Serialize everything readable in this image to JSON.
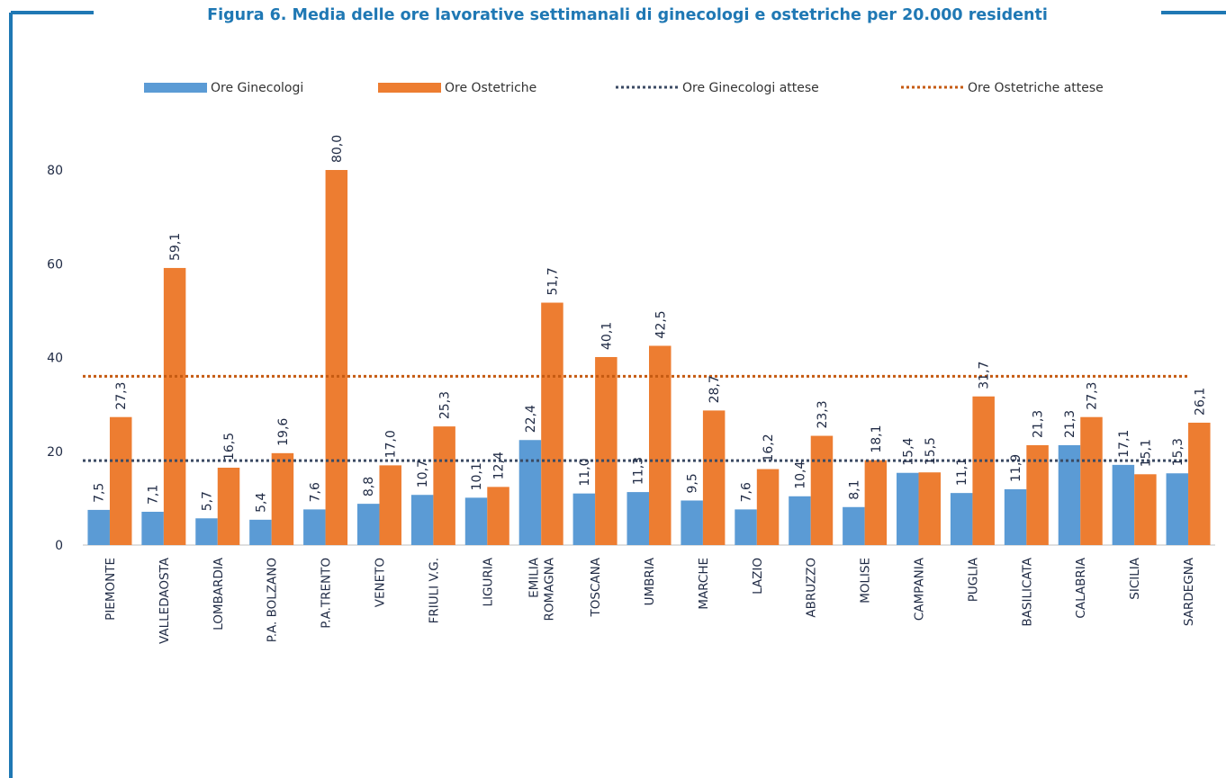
{
  "chart_data": {
    "type": "bar",
    "title": "Figura 6. Media delle ore lavorative settimanali di ginecologi e ostetriche per 20.000 residenti",
    "categories": [
      [
        "PIEMONTE"
      ],
      [
        "VALLEDAOSTA"
      ],
      [
        "LOMBARDIA"
      ],
      [
        "P.A. BOLZANO"
      ],
      [
        "P.A.TRENTO"
      ],
      [
        "VENETO"
      ],
      [
        "FRIULI V.G."
      ],
      [
        "LIGURIA"
      ],
      [
        "EMILIA",
        "ROMAGNA"
      ],
      [
        "TOSCANA"
      ],
      [
        "UMBRIA"
      ],
      [
        "MARCHE"
      ],
      [
        "LAZIO"
      ],
      [
        "ABRUZZO"
      ],
      [
        "MOLISE"
      ],
      [
        "CAMPANIA"
      ],
      [
        "PUGLIA"
      ],
      [
        "BASILICATA"
      ],
      [
        "CALABRIA"
      ],
      [
        "SICILIA"
      ],
      [
        "SARDEGNA"
      ]
    ],
    "series": [
      {
        "name": "Ore Ginecologi",
        "kind": "bar",
        "color": "#5b9bd5",
        "values": [
          7.5,
          7.1,
          5.7,
          5.4,
          7.6,
          8.8,
          10.7,
          10.1,
          22.4,
          11.0,
          11.3,
          9.5,
          7.6,
          10.4,
          8.1,
          15.4,
          11.1,
          11.9,
          21.3,
          17.1,
          15.3
        ],
        "labels": [
          "7,5",
          "7,1",
          "5,7",
          "5,4",
          "7,6",
          "8,8",
          "10,7",
          "10,1",
          "22,4",
          "11,0",
          "11,3",
          "9,5",
          "7,6",
          "10,4",
          "8,1",
          "15,4",
          "11,1",
          "11,9",
          "21,3",
          "17,1",
          "15,3"
        ]
      },
      {
        "name": "Ore Ostetriche",
        "kind": "bar",
        "color": "#ed7d31",
        "values": [
          27.3,
          59.1,
          16.5,
          19.6,
          80.0,
          17.0,
          25.3,
          12.4,
          51.7,
          40.1,
          42.5,
          28.7,
          16.2,
          23.3,
          18.1,
          15.5,
          31.7,
          21.3,
          27.3,
          15.1,
          26.1
        ],
        "labels": [
          "27,3",
          "59,1",
          "16,5",
          "19,6",
          "80,0",
          "17,0",
          "25,3",
          "12,4",
          "51,7",
          "40,1",
          "42,5",
          "28,7",
          "16,2",
          "23,3",
          "18,1",
          "15,5",
          "31,7",
          "21,3",
          "27,3",
          "15,1",
          "26,1"
        ]
      },
      {
        "name": "Ore Ginecologi attese",
        "kind": "line",
        "color": "#3b4a63",
        "value": 18
      },
      {
        "name": "Ore Ostetriche attese",
        "kind": "line",
        "color": "#c55a11",
        "value": 36
      }
    ],
    "yticks": [
      "0",
      "20",
      "40",
      "60",
      "80"
    ],
    "ylim": [
      0,
      80
    ],
    "grid": false,
    "legend": "top"
  },
  "colors": {
    "frame": "#1f78b4",
    "axis": "#bfbfbf"
  }
}
